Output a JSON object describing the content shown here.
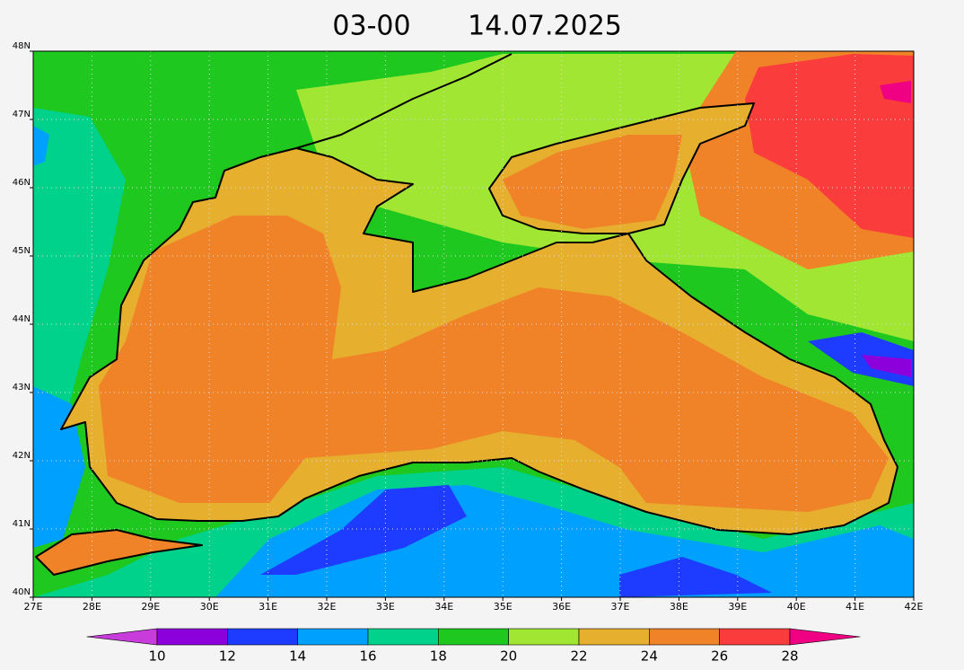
{
  "header": {
    "time": "03-00",
    "date": "14.07.2025"
  },
  "map": {
    "lon_range": [
      27,
      42
    ],
    "lat_range": [
      40,
      48
    ],
    "grid": true,
    "lon_ticks": [
      {
        "value": 27,
        "label": "27E"
      },
      {
        "value": 28,
        "label": "28E"
      },
      {
        "value": 29,
        "label": "29E"
      },
      {
        "value": 30,
        "label": "30E"
      },
      {
        "value": 31,
        "label": "31E"
      },
      {
        "value": 32,
        "label": "32E"
      },
      {
        "value": 33,
        "label": "33E"
      },
      {
        "value": 34,
        "label": "34E"
      },
      {
        "value": 35,
        "label": "35E"
      },
      {
        "value": 36,
        "label": "36E"
      },
      {
        "value": 37,
        "label": "37E"
      },
      {
        "value": 38,
        "label": "38E"
      },
      {
        "value": 39,
        "label": "39E"
      },
      {
        "value": 40,
        "label": "40E"
      },
      {
        "value": 41,
        "label": "41E"
      },
      {
        "value": 42,
        "label": "42E"
      }
    ],
    "lat_ticks": [
      {
        "value": 40,
        "label": "40N"
      },
      {
        "value": 41,
        "label": "41N"
      },
      {
        "value": 42,
        "label": "42N"
      },
      {
        "value": 43,
        "label": "43N"
      },
      {
        "value": 44,
        "label": "44N"
      },
      {
        "value": 45,
        "label": "45N"
      },
      {
        "value": 46,
        "label": "46N"
      },
      {
        "value": 47,
        "label": "47N"
      },
      {
        "value": 48,
        "label": "48N"
      }
    ]
  },
  "colorbar": {
    "levels": [
      10,
      12,
      14,
      16,
      18,
      20,
      22,
      24,
      26,
      28
    ],
    "colors": [
      "#c83cdc",
      "#8c00dc",
      "#1e3cff",
      "#00a0ff",
      "#00d28c",
      "#1ec81e",
      "#a0e632",
      "#e6af2d",
      "#f08228",
      "#fa3c3c",
      "#f00082"
    ]
  }
}
